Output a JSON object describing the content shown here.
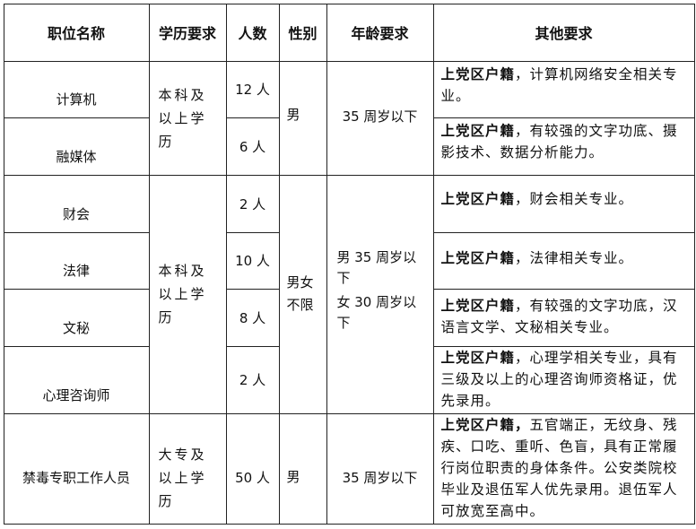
{
  "headers": [
    "职位名称",
    "学历要求",
    "人数",
    "性别",
    "年龄要求",
    "其他要求"
  ],
  "rows": [
    {
      "position": "计算机",
      "count": "12 人",
      "other_bold": "上党区户籍",
      "other": "，计算机网络安全相关专业。"
    },
    {
      "position": "融媒体",
      "count": "6 人",
      "other_bold": "上党区户籍",
      "other": "，有较强的文字功底、摄影技术、数据分析能力。"
    },
    {
      "position": "财会",
      "count": "2 人",
      "other_bold": "上党区户籍",
      "other": "，财会相关专业。"
    },
    {
      "position": "法律",
      "count": "10 人",
      "other_bold": "上党区户籍",
      "other": "，法律相关专业。"
    },
    {
      "position": "文秘",
      "count": "8 人",
      "other_bold": "上党区户籍",
      "other": "，有较强的文字功底，汉语言文学、文秘相关专业。"
    },
    {
      "position": "心理咨询师",
      "count": "2 人",
      "other_bold": "上党区户籍",
      "other": "，心理学相关专业，具有三级及以上的心理咨询师资格证，优先录用。"
    },
    {
      "position": "禁毒专职工作人员",
      "count": "50 人",
      "other_bold": "上党区户籍，",
      "other": "五官端正，无纹身、残疾、口吃、重听、色盲，具有正常履行岗位职责的身体条件。公安类院校毕业及退伍军人优先录用。退伍军人可放宽至高中。"
    }
  ],
  "groups": {
    "edu1": "本科及以上学历",
    "gender1": "男",
    "age1": "35 周岁以下",
    "edu2": "本科及以上学历",
    "gender2": "男女不限",
    "age2_male": "男 35 周岁以下",
    "age2_female": "女 30 周岁以下",
    "edu3": "大专及以上学历",
    "gender3": "男",
    "age3": "35 周岁以下"
  }
}
